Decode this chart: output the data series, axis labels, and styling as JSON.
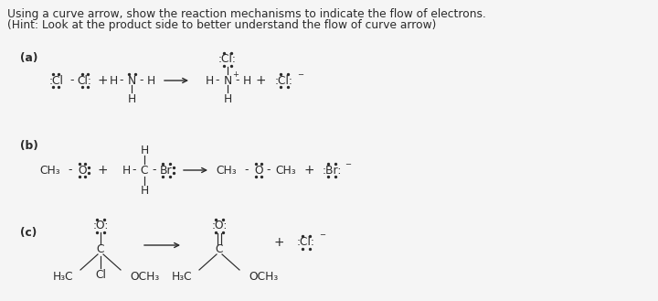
{
  "title1": "Using a curve arrow, show the reaction mechanisms to indicate the flow of electrons.",
  "title2": "(Hint: Look at the product side to better understand the flow of curve arrow)",
  "bg": "#f5f5f5",
  "fg": "#2a2a2a",
  "fs": 8.8,
  "label_a": "(a)",
  "label_b": "(b)",
  "label_c": "(c)"
}
